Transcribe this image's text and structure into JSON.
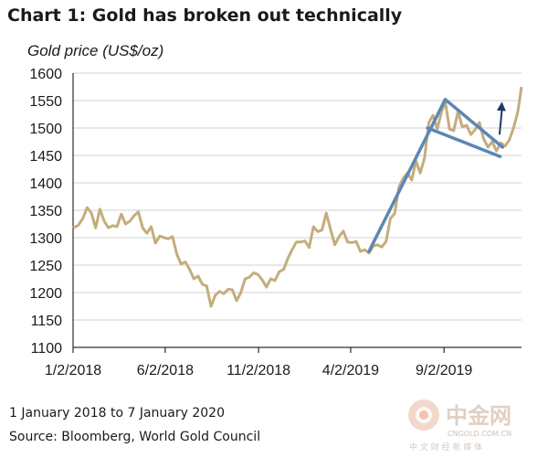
{
  "title": "Chart 1: Gold has broken out technically",
  "unit_label": "Gold price (US$/oz)",
  "footnote_date_range": "1 January 2018 to 7 January 2020",
  "footnote_source": "Source: Bloomberg, World Gold Council",
  "watermark": {
    "main_text": "中金网",
    "url_text": "CNGOLD.COM.CN",
    "sub_text": "中 文 财 经 新 媒 体"
  },
  "colors": {
    "series": "#c4ad7c",
    "trend_lines": "#5b87b5",
    "arrow": "#1f3a66",
    "grid": "#d0d0d0"
  },
  "chart_data": {
    "type": "line",
    "title": "Chart 1: Gold has broken out technically",
    "ylabel": "Gold price (US$/oz)",
    "ylim": [
      1100,
      1600
    ],
    "yticks": [
      1100,
      1150,
      1200,
      1250,
      1300,
      1350,
      1400,
      1450,
      1500,
      1550,
      1600
    ],
    "xlim": [
      "2018-01-02",
      "2020-01-07"
    ],
    "xticks": [
      {
        "date": "2018-01-02",
        "label": "1/2/2018"
      },
      {
        "date": "2018-06-02",
        "label": "6/2/2018"
      },
      {
        "date": "2018-11-02",
        "label": "11/2/2018"
      },
      {
        "date": "2019-04-02",
        "label": "4/2/2019"
      },
      {
        "date": "2019-09-02",
        "label": "9/2/2019"
      }
    ],
    "grid": "horizontal",
    "series": [
      {
        "points": [
          [
            "2018-01-02",
            1318
          ],
          [
            "2018-01-10",
            1322
          ],
          [
            "2018-01-18",
            1335
          ],
          [
            "2018-01-25",
            1355
          ],
          [
            "2018-02-01",
            1345
          ],
          [
            "2018-02-08",
            1318
          ],
          [
            "2018-02-15",
            1352
          ],
          [
            "2018-02-22",
            1330
          ],
          [
            "2018-03-01",
            1318
          ],
          [
            "2018-03-08",
            1322
          ],
          [
            "2018-03-15",
            1320
          ],
          [
            "2018-03-22",
            1343
          ],
          [
            "2018-03-29",
            1325
          ],
          [
            "2018-04-05",
            1330
          ],
          [
            "2018-04-12",
            1340
          ],
          [
            "2018-04-19",
            1347
          ],
          [
            "2018-04-26",
            1318
          ],
          [
            "2018-05-03",
            1308
          ],
          [
            "2018-05-10",
            1320
          ],
          [
            "2018-05-17",
            1290
          ],
          [
            "2018-05-24",
            1303
          ],
          [
            "2018-05-31",
            1300
          ],
          [
            "2018-06-07",
            1298
          ],
          [
            "2018-06-14",
            1302
          ],
          [
            "2018-06-21",
            1270
          ],
          [
            "2018-06-28",
            1252
          ],
          [
            "2018-07-05",
            1256
          ],
          [
            "2018-07-12",
            1242
          ],
          [
            "2018-07-19",
            1225
          ],
          [
            "2018-07-26",
            1230
          ],
          [
            "2018-08-02",
            1215
          ],
          [
            "2018-08-09",
            1212
          ],
          [
            "2018-08-16",
            1175
          ],
          [
            "2018-08-23",
            1195
          ],
          [
            "2018-08-30",
            1202
          ],
          [
            "2018-09-06",
            1198
          ],
          [
            "2018-09-13",
            1206
          ],
          [
            "2018-09-20",
            1205
          ],
          [
            "2018-09-27",
            1185
          ],
          [
            "2018-10-04",
            1200
          ],
          [
            "2018-10-11",
            1225
          ],
          [
            "2018-10-18",
            1228
          ],
          [
            "2018-10-25",
            1236
          ],
          [
            "2018-11-01",
            1233
          ],
          [
            "2018-11-08",
            1223
          ],
          [
            "2018-11-15",
            1210
          ],
          [
            "2018-11-22",
            1225
          ],
          [
            "2018-11-29",
            1222
          ],
          [
            "2018-12-06",
            1238
          ],
          [
            "2018-12-13",
            1242
          ],
          [
            "2018-12-20",
            1262
          ],
          [
            "2018-12-27",
            1278
          ],
          [
            "2019-01-03",
            1292
          ],
          [
            "2019-01-10",
            1292
          ],
          [
            "2019-01-17",
            1294
          ],
          [
            "2019-01-24",
            1282
          ],
          [
            "2019-01-31",
            1320
          ],
          [
            "2019-02-07",
            1311
          ],
          [
            "2019-02-14",
            1314
          ],
          [
            "2019-02-21",
            1345
          ],
          [
            "2019-02-28",
            1315
          ],
          [
            "2019-03-07",
            1287
          ],
          [
            "2019-03-14",
            1302
          ],
          [
            "2019-03-21",
            1312
          ],
          [
            "2019-03-28",
            1292
          ],
          [
            "2019-04-04",
            1291
          ],
          [
            "2019-04-11",
            1293
          ],
          [
            "2019-04-18",
            1275
          ],
          [
            "2019-04-25",
            1278
          ],
          [
            "2019-05-02",
            1272
          ],
          [
            "2019-05-09",
            1285
          ],
          [
            "2019-05-16",
            1287
          ],
          [
            "2019-05-23",
            1283
          ],
          [
            "2019-05-30",
            1293
          ],
          [
            "2019-06-06",
            1335
          ],
          [
            "2019-06-13",
            1344
          ],
          [
            "2019-06-20",
            1392
          ],
          [
            "2019-06-27",
            1408
          ],
          [
            "2019-07-04",
            1418
          ],
          [
            "2019-07-11",
            1405
          ],
          [
            "2019-07-18",
            1440
          ],
          [
            "2019-07-25",
            1418
          ],
          [
            "2019-08-01",
            1445
          ],
          [
            "2019-08-08",
            1510
          ],
          [
            "2019-08-15",
            1523
          ],
          [
            "2019-08-22",
            1498
          ],
          [
            "2019-08-29",
            1530
          ],
          [
            "2019-09-04",
            1548
          ],
          [
            "2019-09-11",
            1498
          ],
          [
            "2019-09-18",
            1495
          ],
          [
            "2019-09-25",
            1530
          ],
          [
            "2019-10-02",
            1502
          ],
          [
            "2019-10-09",
            1505
          ],
          [
            "2019-10-16",
            1488
          ],
          [
            "2019-10-23",
            1497
          ],
          [
            "2019-10-30",
            1510
          ],
          [
            "2019-11-06",
            1480
          ],
          [
            "2019-11-13",
            1465
          ],
          [
            "2019-11-20",
            1475
          ],
          [
            "2019-11-27",
            1458
          ],
          [
            "2019-12-04",
            1473
          ],
          [
            "2019-12-11",
            1467
          ],
          [
            "2019-12-18",
            1478
          ],
          [
            "2019-12-25",
            1500
          ],
          [
            "2020-01-01",
            1530
          ],
          [
            "2020-01-07",
            1575
          ]
        ]
      }
    ],
    "annotations": {
      "trend_lines": [
        {
          "from": [
            "2019-05-02",
            1275
          ],
          "to": [
            "2019-09-04",
            1552
          ]
        },
        {
          "from": [
            "2019-09-04",
            1552
          ],
          "to": [
            "2019-12-07",
            1465
          ]
        },
        {
          "from": [
            "2019-08-06",
            1500
          ],
          "to": [
            "2019-12-03",
            1448
          ]
        }
      ],
      "arrow": {
        "from": [
          "2019-12-02",
          1488
        ],
        "to": [
          "2019-12-06",
          1548
        ]
      }
    }
  }
}
